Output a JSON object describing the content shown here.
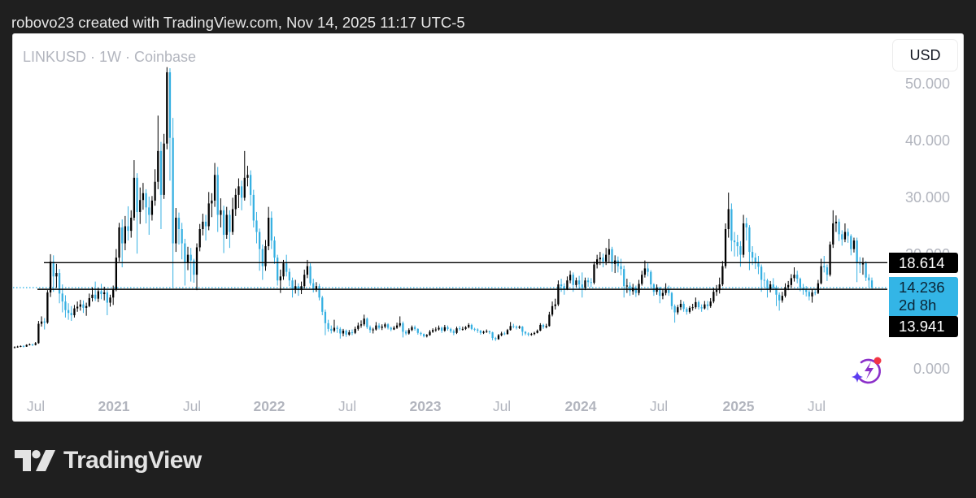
{
  "header": {
    "caption": "robovo23 created with TradingView.com, Nov 14, 2025 11:17 UTC-5"
  },
  "chart": {
    "symbol_title": "LINKUSD · 1W · Coinbase",
    "currency_button": "USD",
    "y_axis_labels": [
      "50.000",
      "40.000",
      "30.000",
      "20.000",
      "0.000"
    ],
    "x_axis_labels": [
      {
        "text": "Jul",
        "year": false
      },
      {
        "text": "2021",
        "year": true
      },
      {
        "text": "Jul",
        "year": false
      },
      {
        "text": "2022",
        "year": true
      },
      {
        "text": "Jul",
        "year": false
      },
      {
        "text": "2023",
        "year": true
      },
      {
        "text": "Jul",
        "year": false
      },
      {
        "text": "2024",
        "year": true
      },
      {
        "text": "Jul",
        "year": false
      },
      {
        "text": "2025",
        "year": true
      },
      {
        "text": "Jul",
        "year": false
      }
    ],
    "price_labels": {
      "upper_line": "18.614",
      "last_price": "14.236",
      "countdown": "2d 8h",
      "lower_line": "13.941"
    },
    "assistant_icon": "sparkle-lightning-icon"
  },
  "footer": {
    "brand": "TradingView"
  },
  "chart_data": {
    "type": "candlestick",
    "title": "LINKUSD · 1W · Coinbase",
    "symbol": "LINKUSD",
    "interval": "1W",
    "exchange": "Coinbase",
    "currency": "USD",
    "xlabel": "",
    "ylabel": "",
    "ylim": [
      0,
      50
    ],
    "y_ticks": [
      0,
      10,
      20,
      30,
      40,
      50
    ],
    "x_tick_labels": [
      "Jul",
      "2021",
      "Jul",
      "2022",
      "Jul",
      "2023",
      "Jul",
      "2024",
      "Jul",
      "2025",
      "Jul"
    ],
    "grid": false,
    "horizontal_lines": [
      {
        "price": 18.614,
        "color": "#000000",
        "style": "solid"
      },
      {
        "price": 13.941,
        "color": "#000000",
        "style": "solid"
      }
    ],
    "last_price_line": {
      "price": 14.236,
      "color": "#33b5e6",
      "style": "dotted"
    },
    "colors": {
      "up": "#000000",
      "down": "#36b0e2"
    },
    "open_first": 3.7,
    "close": [
      3.8,
      3.9,
      4.0,
      3.9,
      4.2,
      4.3,
      4.2,
      4.5,
      7.9,
      8.3,
      8.1,
      13.4,
      18.8,
      16.2,
      16.8,
      13.2,
      11.8,
      10.3,
      9.8,
      9.4,
      10.6,
      10.9,
      11.3,
      10.7,
      11.0,
      12.4,
      13.0,
      12.3,
      13.6,
      13.1,
      13.4,
      11.6,
      12.5,
      14.0,
      19.5,
      24.8,
      22.0,
      25.0,
      24.2,
      26.5,
      33.5,
      27.5,
      29.6,
      30.8,
      28.3,
      27.0,
      29.5,
      32.8,
      38.2,
      30.5,
      39.5,
      52.0,
      40.5,
      22.0,
      26.5,
      24.5,
      22.0,
      18.6,
      20.0,
      19.0,
      16.5,
      21.3,
      24.5,
      25.8,
      25.0,
      29.0,
      29.5,
      34.0,
      27.0,
      27.8,
      23.5,
      27.0,
      24.0,
      28.0,
      30.5,
      32.0,
      30.0,
      33.5,
      34.0,
      30.5,
      26.0,
      24.0,
      21.0,
      18.0,
      21.5,
      26.5,
      22.5,
      19.5,
      15.5,
      16.2,
      18.5,
      17.0,
      15.5,
      14.0,
      14.5,
      13.8,
      14.5,
      16.5,
      18.0,
      15.0,
      14.0,
      14.5,
      12.5,
      10.0,
      8.0,
      7.0,
      6.7,
      7.2,
      7.0,
      6.2,
      6.7,
      6.0,
      6.4,
      6.3,
      7.0,
      7.6,
      7.8,
      8.8,
      7.3,
      6.8,
      6.9,
      7.6,
      7.2,
      7.4,
      7.8,
      7.2,
      6.9,
      7.2,
      7.6,
      8.0,
      6.5,
      6.2,
      6.8,
      7.3,
      7.0,
      6.3,
      6.1,
      5.7,
      5.9,
      6.5,
      6.8,
      6.9,
      7.2,
      6.7,
      7.3,
      7.0,
      6.6,
      6.3,
      7.1,
      7.0,
      7.0,
      7.3,
      7.7,
      7.0,
      6.9,
      6.7,
      6.3,
      6.5,
      6.6,
      6.4,
      5.4,
      5.2,
      5.9,
      6.2,
      6.1,
      6.8,
      7.5,
      7.4,
      7.2,
      7.4,
      6.5,
      6.2,
      6.0,
      6.1,
      6.3,
      6.7,
      7.7,
      7.3,
      7.5,
      9.5,
      11.0,
      11.3,
      14.8,
      14.5,
      14.0,
      15.5,
      16.5,
      14.7,
      15.5,
      14.8,
      14.2,
      15.5,
      15.2,
      15.1,
      18.3,
      19.2,
      19.5,
      18.8,
      20.0,
      21.0,
      18.4,
      19.0,
      18.0,
      17.5,
      14.5,
      14.6,
      13.6,
      14.2,
      13.3,
      14.9,
      16.5,
      17.6,
      17.0,
      14.8,
      13.5,
      14.2,
      12.8,
      13.3,
      14.0,
      13.3,
      11.0,
      9.9,
      10.8,
      11.4,
      10.5,
      10.0,
      10.7,
      10.8,
      11.7,
      10.8,
      10.6,
      11.3,
      11.0,
      11.8,
      13.5,
      13.8,
      14.8,
      18.0,
      24.5,
      28.0,
      22.5,
      22.2,
      21.5,
      20.0,
      25.5,
      24.8,
      20.5,
      19.5,
      18.5,
      17.9,
      15.6,
      15.5,
      14.0,
      14.8,
      14.2,
      13.0,
      12.0,
      12.8,
      14.3,
      14.7,
      15.9,
      16.5,
      15.8,
      14.2,
      13.8,
      13.5,
      12.7,
      13.4,
      13.3,
      15.0,
      18.0,
      17.8,
      16.5,
      21.8,
      25.5,
      25.8,
      23.6,
      22.7,
      24.0,
      23.3,
      21.0,
      22.5,
      18.5,
      18.3,
      18.6,
      16.0,
      15.5,
      14.236
    ],
    "high": [
      3.95,
      4.05,
      4.1,
      4.15,
      4.3,
      4.45,
      4.4,
      4.7,
      8.4,
      9.2,
      8.9,
      13.8,
      20.1,
      19.9,
      18.4,
      17.5,
      14.8,
      12.9,
      11.5,
      11.0,
      11.2,
      11.8,
      12.1,
      12.0,
      11.6,
      13.2,
      14.3,
      15.3,
      14.2,
      14.9,
      14.4,
      13.8,
      13.0,
      14.6,
      21.0,
      25.6,
      26.2,
      26.8,
      28.5,
      27.8,
      36.6,
      34.3,
      31.8,
      32.6,
      31.5,
      30.2,
      30.3,
      35.0,
      44.4,
      39.8,
      41.2,
      52.9,
      52.7,
      44.0,
      28.2,
      27.4,
      25.6,
      22.8,
      21.4,
      21.2,
      19.3,
      22.0,
      25.4,
      27.2,
      27.0,
      31.0,
      30.8,
      36.1,
      35.4,
      29.9,
      28.6,
      28.4,
      27.8,
      30.0,
      31.6,
      33.4,
      33.0,
      38.2,
      35.6,
      34.8,
      31.4,
      27.5,
      24.6,
      21.8,
      22.6,
      28.4,
      27.6,
      23.2,
      20.0,
      17.4,
      19.1,
      20.0,
      17.6,
      16.0,
      15.6,
      15.0,
      15.3,
      17.4,
      19.1,
      18.5,
      15.8,
      15.2,
      14.9,
      12.8,
      10.4,
      8.6,
      7.6,
      8.6,
      7.6,
      7.3,
      7.0,
      6.9,
      6.8,
      6.9,
      7.4,
      8.1,
      8.5,
      9.5,
      9.0,
      7.6,
      7.2,
      8.2,
      8.0,
      7.8,
      8.1,
      8.0,
      7.4,
      7.5,
      8.1,
      9.2,
      8.3,
      6.8,
      7.1,
      7.6,
      7.6,
      7.1,
      6.5,
      6.2,
      6.1,
      6.8,
      7.1,
      7.3,
      7.6,
      7.4,
      7.7,
      7.6,
      7.2,
      6.9,
      7.4,
      7.5,
      7.4,
      7.5,
      8.0,
      7.9,
      7.2,
      7.1,
      6.8,
      6.7,
      6.9,
      6.7,
      6.5,
      5.6,
      6.1,
      6.5,
      6.5,
      7.0,
      8.2,
      7.9,
      7.6,
      7.6,
      7.5,
      6.6,
      6.4,
      6.3,
      6.5,
      6.9,
      8.0,
      7.9,
      7.9,
      10.0,
      11.8,
      12.3,
      15.5,
      15.8,
      15.0,
      16.2,
      17.2,
      16.9,
      16.0,
      16.3,
      16.9,
      16.0,
      16.0,
      15.9,
      18.8,
      20.0,
      20.5,
      20.2,
      21.2,
      22.8,
      21.4,
      19.9,
      19.7,
      19.3,
      18.1,
      15.8,
      15.2,
      14.9,
      14.6,
      15.6,
      17.2,
      19.0,
      18.5,
      17.3,
      15.0,
      14.8,
      14.4,
      13.9,
      15.0,
      14.6,
      13.5,
      11.3,
      11.2,
      12.1,
      11.8,
      10.8,
      11.0,
      11.4,
      12.5,
      12.0,
      11.3,
      11.9,
      11.9,
      12.4,
      14.2,
      14.7,
      16.0,
      18.9,
      25.5,
      30.9,
      29.0,
      24.0,
      23.5,
      22.4,
      27.0,
      26.5,
      25.2,
      21.5,
      20.3,
      19.8,
      18.3,
      16.9,
      15.8,
      15.4,
      15.9,
      14.6,
      13.4,
      13.5,
      15.0,
      15.4,
      16.6,
      17.8,
      17.2,
      16.0,
      14.9,
      14.5,
      13.8,
      13.9,
      14.0,
      15.6,
      19.3,
      19.8,
      18.3,
      22.3,
      27.8,
      26.9,
      26.3,
      24.3,
      25.5,
      24.6,
      23.6,
      23.0,
      23.0,
      19.6,
      19.5,
      18.9,
      16.6,
      16.0
    ],
    "low": [
      3.6,
      3.7,
      3.8,
      3.75,
      3.85,
      4.1,
      4.0,
      4.1,
      4.4,
      7.4,
      6.9,
      7.9,
      12.6,
      13.5,
      14.2,
      11.5,
      9.9,
      9.0,
      8.6,
      8.4,
      9.0,
      10.0,
      10.2,
      9.8,
      9.3,
      10.8,
      11.8,
      11.9,
      11.7,
      12.2,
      12.0,
      9.4,
      10.9,
      11.2,
      13.6,
      18.8,
      17.8,
      20.8,
      22.5,
      23.0,
      26.0,
      20.2,
      25.4,
      27.9,
      25.5,
      23.5,
      26.0,
      28.6,
      31.5,
      24.5,
      29.8,
      38.5,
      33.0,
      14.2,
      20.5,
      21.8,
      19.2,
      14.6,
      17.3,
      15.3,
      15.1,
      13.8,
      20.6,
      23.4,
      22.5,
      24.3,
      26.6,
      28.4,
      24.0,
      24.8,
      20.3,
      22.8,
      21.2,
      23.5,
      26.8,
      28.2,
      27.8,
      29.5,
      32.0,
      28.6,
      24.8,
      22.0,
      17.2,
      15.6,
      17.2,
      20.8,
      21.0,
      18.4,
      14.6,
      13.3,
      15.6,
      16.2,
      14.5,
      12.5,
      13.2,
      12.8,
      13.1,
      14.1,
      15.9,
      14.6,
      13.4,
      13.5,
      12.0,
      9.4,
      5.9,
      6.5,
      6.2,
      6.4,
      6.3,
      5.3,
      5.7,
      5.6,
      5.8,
      5.9,
      6.1,
      6.7,
      7.2,
      7.5,
      7.0,
      6.3,
      6.2,
      6.7,
      6.9,
      6.8,
      7.1,
      6.9,
      6.6,
      6.8,
      7.0,
      7.3,
      5.5,
      5.9,
      6.0,
      6.6,
      6.7,
      6.0,
      5.8,
      5.5,
      5.5,
      5.8,
      6.3,
      6.5,
      6.7,
      6.3,
      6.5,
      6.7,
      6.3,
      5.9,
      6.1,
      6.7,
      6.7,
      6.8,
      7.1,
      6.8,
      6.6,
      6.3,
      6.0,
      6.1,
      6.3,
      6.1,
      5.0,
      4.9,
      5.1,
      5.7,
      5.9,
      6.0,
      6.7,
      7.1,
      6.9,
      7.0,
      5.8,
      5.9,
      5.7,
      5.8,
      5.9,
      6.2,
      6.6,
      7.0,
      7.1,
      7.4,
      9.2,
      10.4,
      11.0,
      13.5,
      13.0,
      13.8,
      15.0,
      13.5,
      14.3,
      13.9,
      12.5,
      13.8,
      14.4,
      14.3,
      14.8,
      17.6,
      18.2,
      17.8,
      18.2,
      18.6,
      17.0,
      16.8,
      16.9,
      16.4,
      12.5,
      13.3,
      12.8,
      13.0,
      12.6,
      12.9,
      14.6,
      16.0,
      16.2,
      14.1,
      12.8,
      13.0,
      11.5,
      12.2,
      12.9,
      12.8,
      10.4,
      8.1,
      9.5,
      10.3,
      10.0,
      9.5,
      9.7,
      10.2,
      10.5,
      10.4,
      10.0,
      10.4,
      10.3,
      10.7,
      11.5,
      12.8,
      13.2,
      14.5,
      17.6,
      23.0,
      20.6,
      19.7,
      19.7,
      17.9,
      19.5,
      22.5,
      17.3,
      18.2,
      17.5,
      16.6,
      13.5,
      14.2,
      12.5,
      13.4,
      13.8,
      11.0,
      10.2,
      11.6,
      12.5,
      13.8,
      14.2,
      15.3,
      15.0,
      13.6,
      13.0,
      12.7,
      12.0,
      11.6,
      12.9,
      13.1,
      14.8,
      16.9,
      15.4,
      16.2,
      21.2,
      24.0,
      22.4,
      21.6,
      22.2,
      22.1,
      19.9,
      20.4,
      15.2,
      16.8,
      16.5,
      15.4,
      14.3,
      14.0
    ]
  }
}
